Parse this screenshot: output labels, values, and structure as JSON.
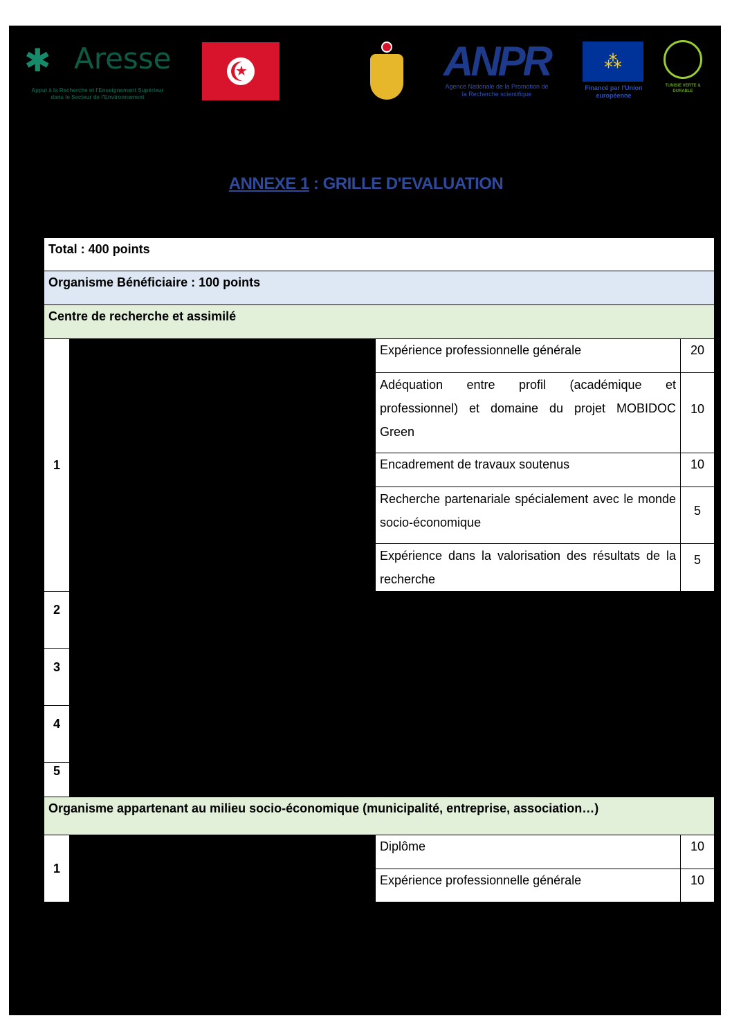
{
  "logos": {
    "aresse": {
      "name": "Aresse",
      "tagline": "Appui à la Recherche et l'Enseignement Supérieur dans le Secteur de l'Environnement"
    },
    "anpr": {
      "name": "ANPR",
      "tagline": "Agence Nationale de la Promotion de la Recherche scientifique"
    },
    "eu": {
      "tagline": "Financé par l'Union européenne"
    },
    "tunisie_verte": {
      "tagline": "TUNISIE VERTE & DURABLE"
    }
  },
  "colors": {
    "title": "#2f4a9a",
    "blue_row": "#dde8f4",
    "green_row": "#e2efd9",
    "tunisia_red": "#d7142b",
    "eu_blue": "#003399"
  },
  "title": {
    "prefix": "ANNEXE 1",
    "suffix": " : GRILLE D'EVALUATION"
  },
  "table": {
    "total": "Total :  400 points",
    "beneficiary": "Organisme Bénéficiaire : 100 points",
    "section1": {
      "label": "Centre de recherche et assimilé",
      "rows": [
        {
          "num": "1",
          "criteria": [
            {
              "label": "Expérience professionnelle générale",
              "points": "20"
            },
            {
              "label": "Adéquation entre profil (académique et professionnel) et domaine du projet MOBIDOC Green",
              "points": "10"
            },
            {
              "label": "Encadrement de travaux soutenus",
              "points": "10"
            },
            {
              "label": "Recherche partenariale spécialement avec le monde socio-économique",
              "points": "5"
            },
            {
              "label": "Expérience dans la valorisation des résultats de la recherche",
              "points": "5"
            }
          ]
        },
        {
          "num": "2"
        },
        {
          "num": "3"
        },
        {
          "num": "4"
        },
        {
          "num": "5"
        }
      ]
    },
    "section2": {
      "label": "Organisme appartenant au milieu socio-économique (municipalité, entreprise, association…)",
      "rows": [
        {
          "num": "1",
          "criteria": [
            {
              "label": "Diplôme",
              "points": "10"
            },
            {
              "label": "Expérience professionnelle générale",
              "points": "10"
            }
          ]
        }
      ]
    }
  }
}
